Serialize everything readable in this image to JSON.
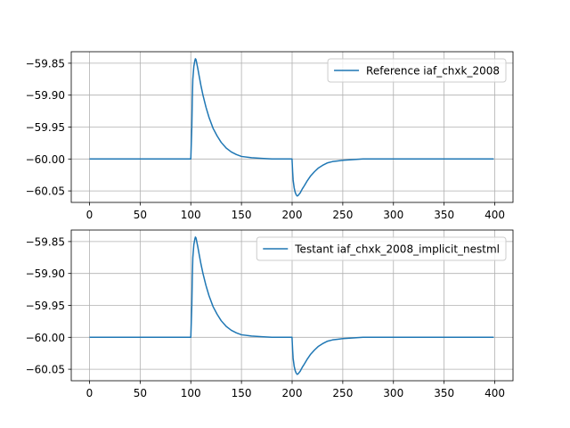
{
  "chart_data": [
    {
      "type": "line",
      "title": "",
      "xlabel": "",
      "ylabel": "",
      "xlim": [
        -18,
        418
      ],
      "ylim": [
        -60.068,
        -59.832
      ],
      "xticks": [
        0,
        50,
        100,
        150,
        200,
        250,
        300,
        350,
        400
      ],
      "xtick_labels": [
        "0",
        "50",
        "100",
        "150",
        "200",
        "250",
        "300",
        "350",
        "400"
      ],
      "yticks": [
        -59.85,
        -59.9,
        -59.95,
        -60.0,
        -60.05
      ],
      "ytick_labels": [
        "−59.85",
        "−59.90",
        "−59.95",
        "−60.00",
        "−60.05"
      ],
      "grid": true,
      "legend_placement": "upper-right",
      "series": [
        {
          "name": "Reference iaf_chxk_2008",
          "color": "#1f77b4",
          "x": [
            0,
            100,
            101,
            101.5,
            102,
            103,
            104,
            104.5,
            105,
            105.5,
            106,
            107,
            108,
            110,
            112,
            115,
            118,
            122,
            126,
            130,
            135,
            140,
            145,
            150,
            160,
            170,
            180,
            190,
            199.9,
            200.5,
            201,
            202,
            203,
            204,
            205,
            206,
            207,
            208,
            210,
            212,
            215,
            218,
            222,
            226,
            230,
            235,
            240,
            245,
            250,
            260,
            270,
            280,
            300,
            330,
            360,
            399
          ],
          "y": [
            -60.0,
            -60.0,
            -59.95,
            -59.905,
            -59.875,
            -59.855,
            -59.846,
            -59.843,
            -59.844,
            -59.847,
            -59.851,
            -59.859,
            -59.868,
            -59.885,
            -59.9,
            -59.919,
            -59.935,
            -59.952,
            -59.964,
            -59.974,
            -59.983,
            -59.989,
            -59.993,
            -59.996,
            -59.998,
            -59.999,
            -60.0,
            -60.0,
            -60.0,
            -60.02,
            -60.033,
            -60.045,
            -60.052,
            -60.056,
            -60.058,
            -60.057,
            -60.055,
            -60.053,
            -60.047,
            -60.042,
            -60.034,
            -60.027,
            -60.02,
            -60.014,
            -60.01,
            -60.006,
            -60.004,
            -60.003,
            -60.002,
            -60.001,
            -60.0,
            -60.0,
            -60.0,
            -60.0,
            -60.0,
            -60.0
          ]
        }
      ]
    },
    {
      "type": "line",
      "title": "",
      "xlabel": "",
      "ylabel": "",
      "xlim": [
        -18,
        418
      ],
      "ylim": [
        -60.068,
        -59.832
      ],
      "xticks": [
        0,
        50,
        100,
        150,
        200,
        250,
        300,
        350,
        400
      ],
      "xtick_labels": [
        "0",
        "50",
        "100",
        "150",
        "200",
        "250",
        "300",
        "350",
        "400"
      ],
      "yticks": [
        -59.85,
        -59.9,
        -59.95,
        -60.0,
        -60.05
      ],
      "ytick_labels": [
        "−59.85",
        "−59.90",
        "−59.95",
        "−60.00",
        "−60.05"
      ],
      "grid": true,
      "legend_placement": "upper-right",
      "series": [
        {
          "name": "Testant iaf_chxk_2008_implicit_nestml",
          "color": "#1f77b4",
          "x": [
            0,
            100,
            101,
            101.5,
            102,
            103,
            104,
            104.5,
            105,
            105.5,
            106,
            107,
            108,
            110,
            112,
            115,
            118,
            122,
            126,
            130,
            135,
            140,
            145,
            150,
            160,
            170,
            180,
            190,
            199.9,
            200.5,
            201,
            202,
            203,
            204,
            205,
            206,
            207,
            208,
            210,
            212,
            215,
            218,
            222,
            226,
            230,
            235,
            240,
            245,
            250,
            260,
            270,
            280,
            300,
            330,
            360,
            399
          ],
          "y": [
            -60.0,
            -60.0,
            -59.95,
            -59.905,
            -59.875,
            -59.855,
            -59.846,
            -59.843,
            -59.844,
            -59.847,
            -59.851,
            -59.859,
            -59.868,
            -59.885,
            -59.9,
            -59.919,
            -59.935,
            -59.952,
            -59.964,
            -59.974,
            -59.983,
            -59.989,
            -59.993,
            -59.996,
            -59.998,
            -59.999,
            -60.0,
            -60.0,
            -60.0,
            -60.02,
            -60.033,
            -60.045,
            -60.052,
            -60.056,
            -60.058,
            -60.057,
            -60.055,
            -60.053,
            -60.047,
            -60.042,
            -60.034,
            -60.027,
            -60.02,
            -60.014,
            -60.01,
            -60.006,
            -60.004,
            -60.003,
            -60.002,
            -60.001,
            -60.0,
            -60.0,
            -60.0,
            -60.0,
            -60.0,
            -60.0
          ]
        }
      ]
    }
  ]
}
